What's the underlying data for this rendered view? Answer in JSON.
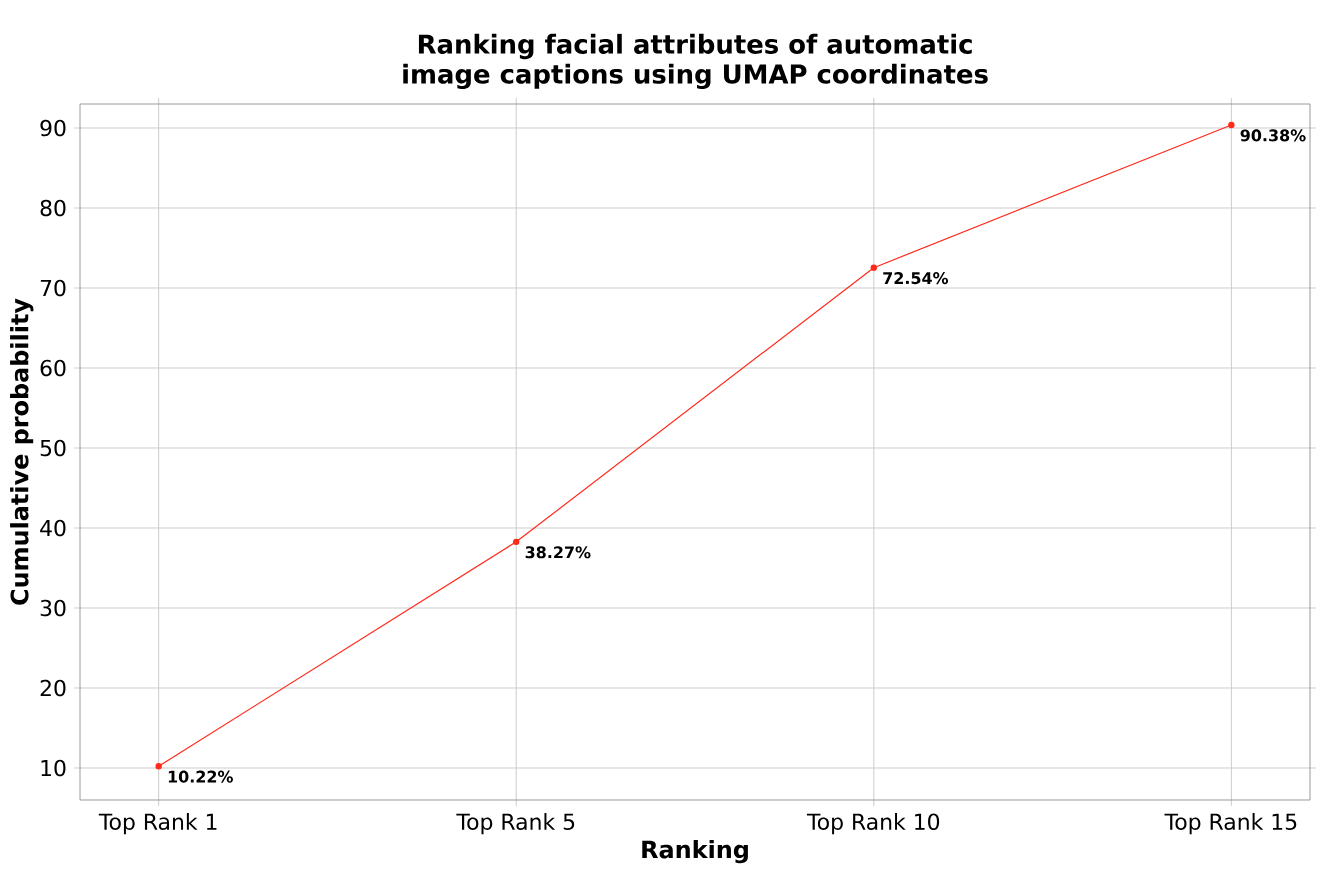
{
  "chart_data": {
    "type": "line",
    "title": "Ranking facial attributes of automatic\nimage captions using UMAP coordinates",
    "xlabel": "Ranking",
    "ylabel": "Cumulative probability",
    "categories": [
      "Top Rank 1",
      "Top Rank 5",
      "Top Rank 10",
      "Top Rank 15"
    ],
    "series": [
      {
        "color": "#ff2a1a",
        "values": [
          10.22,
          38.27,
          72.54,
          90.38
        ],
        "value_labels": [
          "10.22%",
          "38.27%",
          "72.54%",
          "90.38%"
        ]
      }
    ],
    "ylim": [
      6,
      93
    ],
    "yticks": [
      10,
      20,
      30,
      40,
      50,
      60,
      70,
      80,
      90
    ],
    "grid": true,
    "marker": "circle",
    "line_style": "solid"
  }
}
